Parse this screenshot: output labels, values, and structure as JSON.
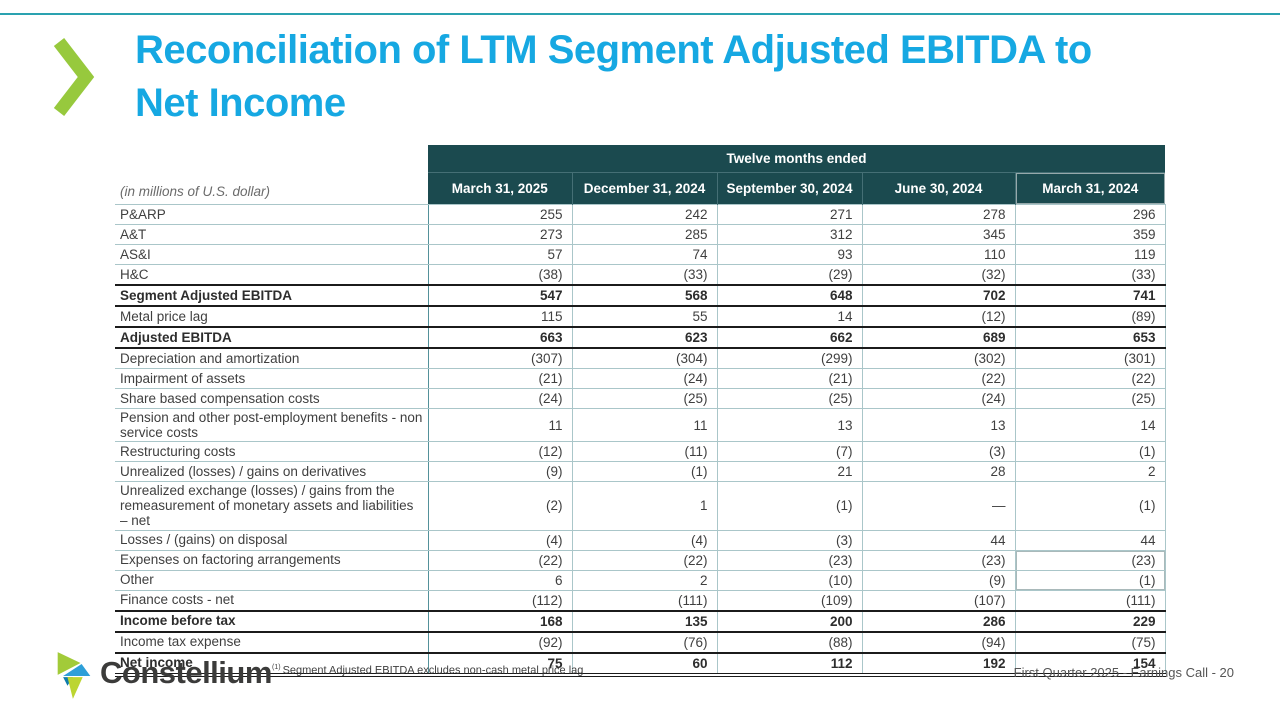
{
  "slide": {
    "title_line1": "Reconciliation of LTM Segment Adjusted EBITDA to",
    "title_line2": "Net Income"
  },
  "colors": {
    "brand_cyan": "#16a8e2",
    "chevron_green": "#97c93d",
    "table_header_teal": "#1b4a4f",
    "top_rule_teal": "#2aa2b0"
  },
  "icons": {
    "chevron": "chevron-right-icon",
    "logo": "constellium-gem-logo"
  },
  "table": {
    "span_header": "Twelve months ended",
    "unit_label": "(in millions of U.S. dollar)",
    "columns": [
      "March 31, 2025",
      "December 31, 2024",
      "September 30, 2024",
      "June 30, 2024",
      "March 31, 2024"
    ],
    "rows": [
      {
        "label": "P&ARP",
        "values": [
          "255",
          "242",
          "271",
          "278",
          "296"
        ],
        "bold": false
      },
      {
        "label": "A&T",
        "values": [
          "273",
          "285",
          "312",
          "345",
          "359"
        ],
        "bold": false
      },
      {
        "label": "AS&I",
        "values": [
          "57",
          "74",
          "93",
          "110",
          "119"
        ],
        "bold": false
      },
      {
        "label": "H&C",
        "values": [
          "(38)",
          "(33)",
          "(29)",
          "(32)",
          "(33)"
        ],
        "bold": false
      },
      {
        "label": "Segment Adjusted EBITDA",
        "values": [
          "547",
          "568",
          "648",
          "702",
          "741"
        ],
        "bold": true
      },
      {
        "label": "Metal price lag",
        "values": [
          "115",
          "55",
          "14",
          "(12)",
          "(89)"
        ],
        "bold": false
      },
      {
        "label": "Adjusted EBITDA",
        "values": [
          "663",
          "623",
          "662",
          "689",
          "653"
        ],
        "bold": true
      },
      {
        "label": "Depreciation and amortization",
        "values": [
          "(307)",
          "(304)",
          "(299)",
          "(302)",
          "(301)"
        ],
        "bold": false
      },
      {
        "label": "Impairment of assets",
        "values": [
          "(21)",
          "(24)",
          "(21)",
          "(22)",
          "(22)"
        ],
        "bold": false
      },
      {
        "label": "Share based compensation costs",
        "values": [
          "(24)",
          "(25)",
          "(25)",
          "(24)",
          "(25)"
        ],
        "bold": false
      },
      {
        "label": "Pension and other post-employment benefits - non service costs",
        "values": [
          "11",
          "11",
          "13",
          "13",
          "14"
        ],
        "bold": false
      },
      {
        "label": "Restructuring costs",
        "values": [
          "(12)",
          "(11)",
          "(7)",
          "(3)",
          "(1)"
        ],
        "bold": false
      },
      {
        "label": "Unrealized (losses) / gains on derivatives",
        "values": [
          "(9)",
          "(1)",
          "21",
          "28",
          "2"
        ],
        "bold": false
      },
      {
        "label": "Unrealized exchange (losses) / gains from the remeasurement of monetary assets and liabilities – net",
        "values": [
          "(2)",
          "1",
          "(1)",
          "—",
          "(1)"
        ],
        "bold": false
      },
      {
        "label": "Losses / (gains) on disposal",
        "values": [
          "(4)",
          "(4)",
          "(3)",
          "44",
          "44"
        ],
        "bold": false
      },
      {
        "label": "Expenses on factoring arrangements",
        "values": [
          "(22)",
          "(22)",
          "(23)",
          "(23)",
          "(23)"
        ],
        "bold": false
      },
      {
        "label": "Other",
        "values": [
          "6",
          "2",
          "(10)",
          "(9)",
          "(1)"
        ],
        "bold": false
      },
      {
        "label": "Finance costs - net",
        "values": [
          "(112)",
          "(111)",
          "(109)",
          "(107)",
          "(111)"
        ],
        "bold": false
      },
      {
        "label": "Income before tax",
        "values": [
          "168",
          "135",
          "200",
          "286",
          "229"
        ],
        "bold": true
      },
      {
        "label": "Income tax expense",
        "values": [
          "(92)",
          "(76)",
          "(88)",
          "(94)",
          "(75)"
        ],
        "bold": false
      },
      {
        "label": "Net income",
        "values": [
          "75",
          "60",
          "112",
          "192",
          "154"
        ],
        "bold": true,
        "final": true
      }
    ]
  },
  "footer": {
    "logo_text": "Constellium",
    "footnote_marker": "(1)",
    "footnote_text": "Segment Adjusted EBITDA excludes non-cash metal price lag",
    "page_label": "First Quarter 2025  -  Earnings Call - 20"
  }
}
